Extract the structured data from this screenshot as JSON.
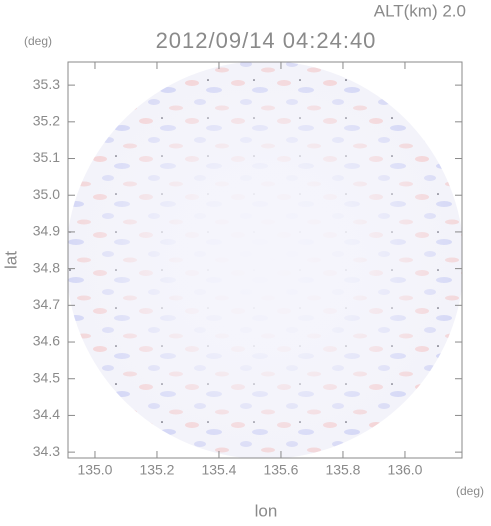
{
  "chart_data": {
    "type": "radar-field",
    "title": "2012/09/14 04:24:40",
    "annotation": "ALT(km) 2.0",
    "x_label": "lon",
    "y_label": "lat",
    "x_unit": "(deg)",
    "y_unit": "(deg)",
    "xlim": [
      134.913,
      136.184
    ],
    "ylim": [
      34.284,
      35.363
    ],
    "xticks": [
      {
        "value": 135.0,
        "label": "135.0"
      },
      135.2,
      135.4,
      135.6,
      135.8,
      {
        "value": 136.0,
        "label": "136.0"
      }
    ],
    "yticks": [
      34.3,
      34.4,
      34.5,
      34.6,
      34.7,
      34.8,
      34.9,
      {
        "value": 35.0,
        "label": "35.0"
      },
      35.1,
      35.2,
      35.3
    ],
    "frame_color": "#8a8a8a"
  }
}
